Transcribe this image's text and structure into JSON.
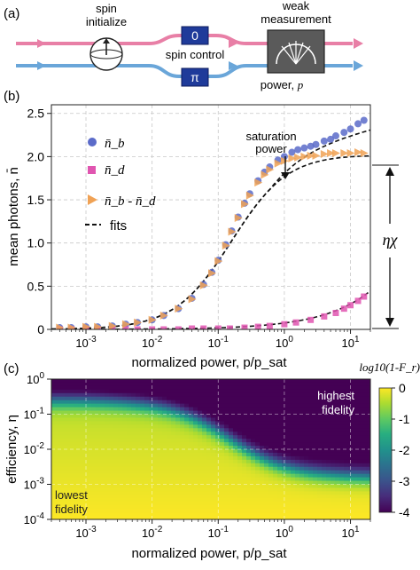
{
  "panel_a": {
    "label": "(a)",
    "spin_initialize": [
      "spin",
      "initialize"
    ],
    "spin_control": "spin control",
    "gate_top": "0",
    "gate_bottom": "π",
    "weak_measurement": [
      "weak",
      "measurement"
    ],
    "power_label": "power, ",
    "power_sym": "p",
    "colors": {
      "pink": "#e87fa6",
      "blue": "#6aa6d9",
      "gate": "#1f3b9a"
    }
  },
  "chart_data": [
    {
      "panel": "(b)",
      "type": "scatter",
      "xscale": "log",
      "xlim": [
        0.0003,
        20
      ],
      "ylim": [
        0,
        2.6
      ],
      "xlabel": "normalized power, p/p_sat",
      "ylabel": "mean photons, n̄",
      "xticks": [
        "10^-3",
        "10^-2",
        "10^-1",
        "10^0",
        "10^1"
      ],
      "yticks": [
        0,
        0.5,
        1.0,
        1.5,
        2.0,
        2.5
      ],
      "legend_position": "top-left",
      "series": [
        {
          "name": "n̄_b",
          "marker": "circle",
          "color": "#5b6bc9",
          "x": [
            0.0004,
            0.0006,
            0.001,
            0.0015,
            0.0025,
            0.004,
            0.006,
            0.01,
            0.015,
            0.025,
            0.04,
            0.06,
            0.08,
            0.1,
            0.13,
            0.16,
            0.2,
            0.25,
            0.3,
            0.4,
            0.5,
            0.6,
            0.8,
            1.0,
            1.3,
            1.6,
            2,
            2.5,
            3,
            4,
            5,
            6,
            8,
            10,
            13,
            16
          ],
          "y": [
            0.02,
            0.02,
            0.03,
            0.03,
            0.04,
            0.06,
            0.08,
            0.11,
            0.16,
            0.24,
            0.36,
            0.52,
            0.66,
            0.8,
            0.98,
            1.14,
            1.3,
            1.46,
            1.57,
            1.72,
            1.82,
            1.88,
            1.96,
            2.0,
            2.05,
            2.08,
            2.1,
            2.12,
            2.14,
            2.18,
            2.2,
            2.24,
            2.28,
            2.32,
            2.38,
            2.42
          ]
        },
        {
          "name": "n̄_d",
          "marker": "square",
          "color": "#e055b0",
          "x": [
            0.0004,
            0.0006,
            0.001,
            0.0015,
            0.0025,
            0.004,
            0.006,
            0.01,
            0.015,
            0.025,
            0.04,
            0.06,
            0.1,
            0.15,
            0.25,
            0.4,
            0.6,
            1.0,
            1.5,
            2.5,
            4,
            6,
            8,
            10,
            13,
            16
          ],
          "y": [
            0.0,
            0.0,
            0.0,
            0.0,
            0.0,
            0.0,
            0.0,
            0.0,
            0.0,
            0.0,
            0.01,
            0.01,
            0.01,
            0.01,
            0.02,
            0.03,
            0.04,
            0.06,
            0.08,
            0.11,
            0.15,
            0.19,
            0.24,
            0.28,
            0.33,
            0.38
          ]
        },
        {
          "name": "n̄_b - n̄_d",
          "marker": "triangle-right",
          "color": "#f0a255",
          "x": [
            0.0004,
            0.0006,
            0.001,
            0.0015,
            0.0025,
            0.004,
            0.006,
            0.01,
            0.015,
            0.025,
            0.04,
            0.06,
            0.08,
            0.1,
            0.13,
            0.16,
            0.2,
            0.25,
            0.3,
            0.4,
            0.5,
            0.6,
            0.8,
            1.0,
            1.3,
            1.6,
            2,
            2.5,
            3,
            4,
            5,
            6,
            8,
            10,
            13,
            16
          ],
          "y": [
            0.02,
            0.02,
            0.03,
            0.03,
            0.04,
            0.06,
            0.08,
            0.11,
            0.16,
            0.24,
            0.35,
            0.51,
            0.65,
            0.79,
            0.97,
            1.13,
            1.29,
            1.45,
            1.55,
            1.7,
            1.79,
            1.85,
            1.92,
            1.95,
            1.98,
            1.99,
            2.0,
            2.01,
            2.01,
            2.03,
            2.04,
            2.04,
            2.04,
            2.04,
            2.05,
            2.04
          ]
        }
      ],
      "fits_label": "fits",
      "annotations": {
        "saturation": [
          "saturation",
          "power"
        ],
        "eta_chi": "ηχ"
      },
      "colors": {
        "fit": "#111111"
      }
    },
    {
      "panel": "(c)",
      "type": "heatmap",
      "xscale": "log",
      "yscale": "log",
      "xlim": [
        0.0003,
        20
      ],
      "ylim": [
        0.0001,
        1
      ],
      "xlabel": "normalized power, p/p_sat",
      "ylabel": "efficiency, η",
      "xticks": [
        "10^-3",
        "10^-2",
        "10^-1",
        "10^0",
        "10^1"
      ],
      "yticks": [
        "10^0",
        "10^-1",
        "10^-2",
        "10^-3",
        "10^-4"
      ],
      "colorbar": {
        "label": "log10(1-F_r)",
        "ticks": [
          0,
          -1,
          -2,
          -3,
          -4
        ],
        "range": [
          -4,
          0
        ],
        "colormap": "viridis"
      },
      "annotations": {
        "top_right": [
          "highest",
          "fidelity"
        ],
        "bottom_left": [
          "lowest",
          "fidelity"
        ]
      }
    }
  ]
}
